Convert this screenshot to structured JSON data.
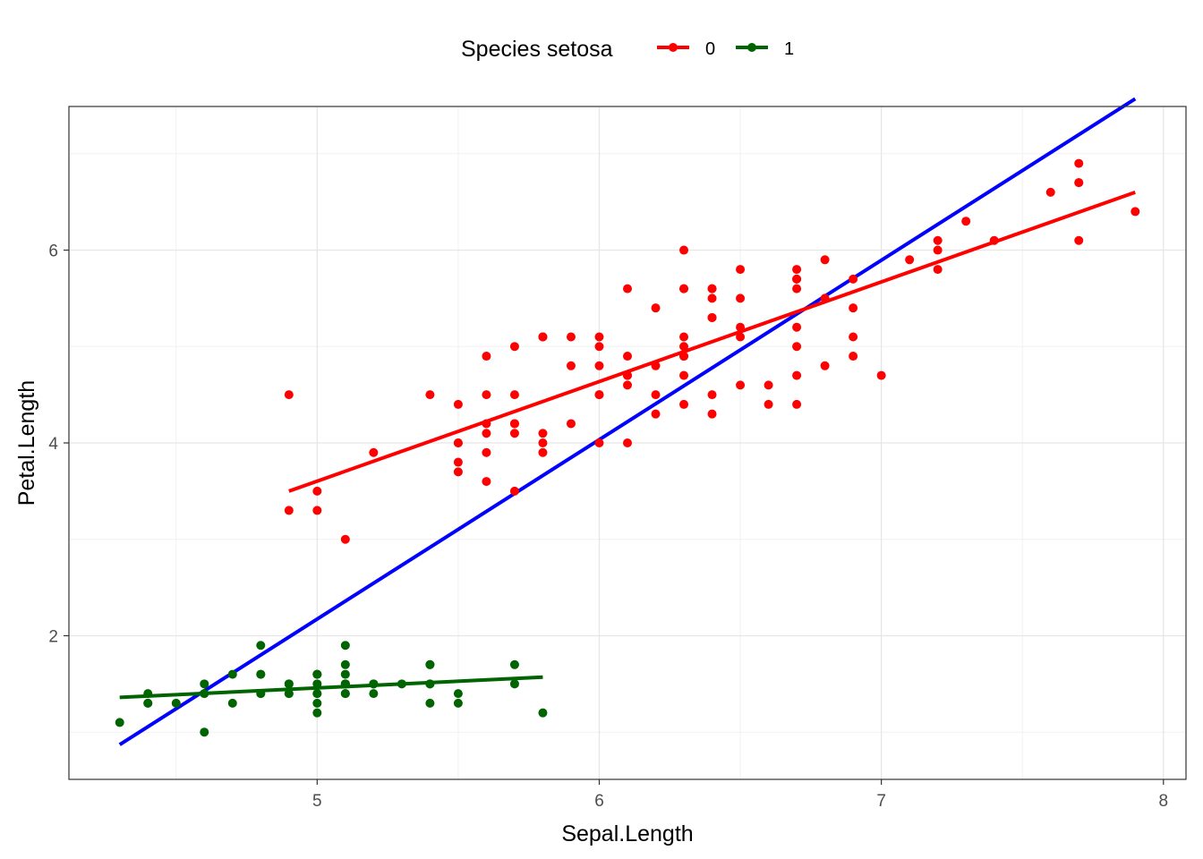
{
  "chart_data": {
    "type": "scatter",
    "xlabel": "Sepal.Length",
    "ylabel": "Petal.Length",
    "xlim": [
      4.12,
      8.08
    ],
    "ylim": [
      0.51,
      7.49
    ],
    "xticks": [
      5,
      6,
      7,
      8
    ],
    "yticks": [
      2,
      4,
      6
    ],
    "grid": true,
    "legend": {
      "title": "Species setosa",
      "placement": "top",
      "entries": [
        {
          "label": "0",
          "color": "#ff0000"
        },
        {
          "label": "1",
          "color": "#006400"
        }
      ]
    },
    "series": [
      {
        "label": "0",
        "color": "#ff0000",
        "points": [
          [
            7.0,
            4.7
          ],
          [
            6.4,
            4.5
          ],
          [
            6.9,
            4.9
          ],
          [
            5.5,
            4.0
          ],
          [
            6.5,
            4.6
          ],
          [
            5.7,
            4.5
          ],
          [
            6.3,
            4.7
          ],
          [
            4.9,
            3.3
          ],
          [
            6.6,
            4.6
          ],
          [
            5.2,
            3.9
          ],
          [
            5.0,
            3.5
          ],
          [
            5.9,
            4.2
          ],
          [
            6.0,
            4.0
          ],
          [
            6.1,
            4.7
          ],
          [
            5.6,
            3.6
          ],
          [
            6.7,
            4.4
          ],
          [
            5.6,
            4.5
          ],
          [
            5.8,
            4.1
          ],
          [
            6.2,
            4.5
          ],
          [
            5.6,
            3.9
          ],
          [
            5.9,
            4.8
          ],
          [
            6.1,
            4.0
          ],
          [
            6.3,
            4.9
          ],
          [
            6.1,
            4.7
          ],
          [
            6.4,
            4.3
          ],
          [
            6.6,
            4.4
          ],
          [
            6.8,
            4.8
          ],
          [
            6.7,
            5.0
          ],
          [
            6.0,
            4.5
          ],
          [
            5.7,
            3.5
          ],
          [
            5.5,
            3.8
          ],
          [
            5.5,
            3.7
          ],
          [
            5.8,
            3.9
          ],
          [
            6.0,
            5.1
          ],
          [
            5.4,
            4.5
          ],
          [
            6.0,
            4.5
          ],
          [
            6.7,
            4.7
          ],
          [
            6.3,
            4.4
          ],
          [
            5.6,
            4.1
          ],
          [
            5.5,
            4.0
          ],
          [
            5.5,
            4.4
          ],
          [
            6.1,
            4.6
          ],
          [
            5.8,
            4.0
          ],
          [
            5.0,
            3.3
          ],
          [
            5.6,
            4.2
          ],
          [
            5.7,
            4.2
          ],
          [
            5.7,
            4.2
          ],
          [
            6.2,
            4.3
          ],
          [
            5.1,
            3.0
          ],
          [
            5.7,
            4.1
          ],
          [
            6.3,
            6.0
          ],
          [
            5.8,
            5.1
          ],
          [
            7.1,
            5.9
          ],
          [
            6.3,
            5.6
          ],
          [
            6.5,
            5.8
          ],
          [
            7.6,
            6.6
          ],
          [
            4.9,
            4.5
          ],
          [
            7.3,
            6.3
          ],
          [
            6.7,
            5.8
          ],
          [
            7.2,
            6.1
          ],
          [
            6.5,
            5.1
          ],
          [
            6.4,
            5.3
          ],
          [
            6.8,
            5.5
          ],
          [
            5.7,
            5.0
          ],
          [
            5.8,
            5.1
          ],
          [
            6.4,
            5.3
          ],
          [
            6.5,
            5.5
          ],
          [
            7.7,
            6.7
          ],
          [
            7.7,
            6.9
          ],
          [
            6.0,
            5.0
          ],
          [
            6.9,
            5.7
          ],
          [
            5.6,
            4.9
          ],
          [
            7.7,
            6.7
          ],
          [
            6.3,
            4.9
          ],
          [
            6.7,
            5.7
          ],
          [
            7.2,
            6.0
          ],
          [
            6.2,
            4.8
          ],
          [
            6.1,
            4.9
          ],
          [
            6.4,
            5.6
          ],
          [
            7.2,
            5.8
          ],
          [
            7.4,
            6.1
          ],
          [
            7.9,
            6.4
          ],
          [
            6.4,
            5.6
          ],
          [
            6.3,
            5.1
          ],
          [
            6.1,
            5.6
          ],
          [
            7.7,
            6.1
          ],
          [
            6.3,
            5.6
          ],
          [
            6.4,
            5.5
          ],
          [
            6.0,
            4.8
          ],
          [
            6.9,
            5.4
          ],
          [
            6.7,
            5.6
          ],
          [
            6.9,
            5.1
          ],
          [
            5.8,
            5.1
          ],
          [
            6.8,
            5.9
          ],
          [
            6.7,
            5.7
          ],
          [
            6.7,
            5.2
          ],
          [
            6.3,
            5.0
          ],
          [
            6.5,
            5.2
          ],
          [
            6.2,
            5.4
          ],
          [
            5.9,
            5.1
          ]
        ],
        "fit": {
          "x": [
            4.9,
            7.9
          ],
          "y": [
            3.5,
            6.6
          ]
        }
      },
      {
        "label": "1",
        "color": "#006400",
        "points": [
          [
            5.1,
            1.4
          ],
          [
            4.9,
            1.4
          ],
          [
            4.7,
            1.3
          ],
          [
            4.6,
            1.5
          ],
          [
            5.0,
            1.4
          ],
          [
            5.4,
            1.7
          ],
          [
            4.6,
            1.4
          ],
          [
            5.0,
            1.5
          ],
          [
            4.4,
            1.4
          ],
          [
            4.9,
            1.5
          ],
          [
            5.4,
            1.5
          ],
          [
            4.8,
            1.6
          ],
          [
            4.8,
            1.4
          ],
          [
            4.3,
            1.1
          ],
          [
            5.8,
            1.2
          ],
          [
            5.7,
            1.5
          ],
          [
            5.4,
            1.3
          ],
          [
            5.1,
            1.4
          ],
          [
            5.7,
            1.7
          ],
          [
            5.1,
            1.5
          ],
          [
            5.4,
            1.7
          ],
          [
            5.1,
            1.5
          ],
          [
            4.6,
            1.0
          ],
          [
            5.1,
            1.7
          ],
          [
            4.8,
            1.9
          ],
          [
            5.0,
            1.6
          ],
          [
            5.0,
            1.6
          ],
          [
            5.2,
            1.5
          ],
          [
            5.2,
            1.4
          ],
          [
            4.7,
            1.6
          ],
          [
            4.8,
            1.6
          ],
          [
            5.4,
            1.5
          ],
          [
            5.2,
            1.5
          ],
          [
            5.5,
            1.4
          ],
          [
            4.9,
            1.5
          ],
          [
            5.0,
            1.2
          ],
          [
            5.5,
            1.3
          ],
          [
            4.9,
            1.4
          ],
          [
            4.4,
            1.3
          ],
          [
            5.1,
            1.5
          ],
          [
            5.0,
            1.3
          ],
          [
            4.5,
            1.3
          ],
          [
            4.4,
            1.3
          ],
          [
            5.0,
            1.6
          ],
          [
            5.1,
            1.9
          ],
          [
            4.8,
            1.4
          ],
          [
            5.1,
            1.6
          ],
          [
            4.6,
            1.4
          ],
          [
            5.3,
            1.5
          ],
          [
            5.0,
            1.4
          ]
        ],
        "fit": {
          "x": [
            4.3,
            5.8
          ],
          "y": [
            1.36,
            1.57
          ]
        }
      }
    ],
    "overall_fit": {
      "color": "#0000ff",
      "x": [
        4.3,
        7.9
      ],
      "y": [
        0.87,
        7.57
      ]
    }
  }
}
